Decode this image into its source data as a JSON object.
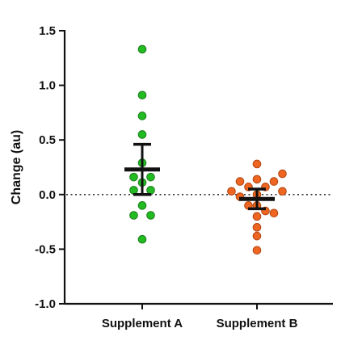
{
  "chart_data": {
    "type": "scatter",
    "title": "",
    "xlabel": "",
    "ylabel": "Change (au)",
    "ylim": [
      -1.0,
      1.5
    ],
    "yticks": [
      "-1.0",
      "-0.5",
      "0.0",
      "0.5",
      "1.0",
      "1.5"
    ],
    "ytick_values": [
      -1.0,
      -0.5,
      0.0,
      0.5,
      1.0,
      1.5
    ],
    "categories": [
      "Supplement A",
      "Supplement B"
    ],
    "reference_line": {
      "y": 0,
      "style": "dotted"
    },
    "grid": false,
    "legend": "none",
    "series": [
      {
        "category": "Supplement A",
        "color": "#22bb22",
        "edge_color": "#1a7a1a",
        "points": [
          {
            "x_offset": 0,
            "y": 1.33
          },
          {
            "x_offset": 0,
            "y": 0.91
          },
          {
            "x_offset": 0,
            "y": 0.72
          },
          {
            "x_offset": 0,
            "y": 0.55
          },
          {
            "x_offset": 0,
            "y": 0.29
          },
          {
            "x_offset": -1,
            "y": 0.16
          },
          {
            "x_offset": 1,
            "y": 0.16
          },
          {
            "x_offset": 0,
            "y": 0.11
          },
          {
            "x_offset": -1,
            "y": 0.04
          },
          {
            "x_offset": 1,
            "y": 0.04
          },
          {
            "x_offset": -1,
            "y": -0.19
          },
          {
            "x_offset": 1,
            "y": -0.19
          },
          {
            "x_offset": 0,
            "y": -0.1
          },
          {
            "x_offset": 0,
            "y": -0.41
          }
        ],
        "mean": 0.23,
        "error_upper": 0.46,
        "error_lower": 0.0
      },
      {
        "category": "Supplement B",
        "color": "#ee6622",
        "edge_color": "#b0440f",
        "points": [
          {
            "x_offset": 0,
            "y": 0.28
          },
          {
            "x_offset": -2,
            "y": 0.12
          },
          {
            "x_offset": 2,
            "y": 0.12
          },
          {
            "x_offset": 3,
            "y": 0.19
          },
          {
            "x_offset": 0,
            "y": 0.14
          },
          {
            "x_offset": -3,
            "y": 0.03
          },
          {
            "x_offset": -1,
            "y": 0.07
          },
          {
            "x_offset": 1,
            "y": 0.07
          },
          {
            "x_offset": 3,
            "y": 0.03
          },
          {
            "x_offset": 0,
            "y": 0.0
          },
          {
            "x_offset": -2,
            "y": -0.02
          },
          {
            "x_offset": -1,
            "y": -0.1
          },
          {
            "x_offset": 0,
            "y": -0.1
          },
          {
            "x_offset": 1,
            "y": -0.15
          },
          {
            "x_offset": 2,
            "y": -0.17
          },
          {
            "x_offset": 0,
            "y": -0.2
          },
          {
            "x_offset": 0,
            "y": -0.3
          },
          {
            "x_offset": 0,
            "y": -0.38
          },
          {
            "x_offset": 0,
            "y": -0.51
          }
        ],
        "mean": -0.04,
        "error_upper": 0.05,
        "error_lower": -0.13
      }
    ]
  }
}
